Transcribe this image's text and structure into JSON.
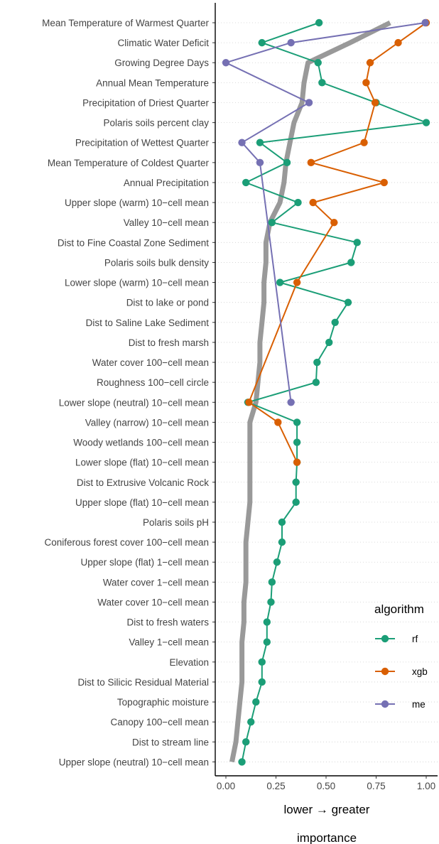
{
  "chart_data": {
    "type": "line",
    "orientation": "horizontal",
    "categories": [
      "Mean Temperature of Warmest Quarter",
      "Climatic Water Deficit",
      "Growing Degree Days",
      "Annual Mean Temperature",
      "Precipitation of Driest Quarter",
      "Polaris soils percent clay",
      "Precipitation of Wettest Quarter",
      "Mean Temperature of Coldest Quarter",
      "Annual Precipitation",
      "Upper slope (warm) 10−cell mean",
      "Valley 10−cell mean",
      "Dist to Fine Coastal Zone Sediment",
      "Polaris soils bulk density",
      "Lower slope (warm) 10−cell mean",
      "Dist to lake or pond",
      "Dist to Saline Lake Sediment",
      "Dist to fresh marsh",
      "Water cover 100−cell mean",
      "Roughness 100−cell circle",
      "Lower slope (neutral) 10−cell mean",
      "Valley (narrow) 10−cell mean",
      "Woody wetlands 100−cell mean",
      "Lower slope (flat) 10−cell mean",
      "Dist to Extrusive Volcanic Rock",
      "Upper slope (flat) 10−cell mean",
      "Polaris soils pH",
      "Coniferous forest cover 100−cell mean",
      "Upper slope (flat) 1−cell mean",
      "Water cover 1−cell mean",
      "Water cover 10−cell mean",
      "Dist to fresh waters",
      "Valley 1−cell mean",
      "Elevation",
      "Dist to Silicic Residual Material",
      "Topographic moisture",
      "Canopy 100−cell mean",
      "Dist to stream line",
      "Upper slope (neutral) 10−cell mean"
    ],
    "series": [
      {
        "name": "rf",
        "color": "#1b9e77",
        "values": [
          0.465,
          0.18,
          0.46,
          0.48,
          0.75,
          1.0,
          0.17,
          0.305,
          0.1,
          0.36,
          0.23,
          0.655,
          0.625,
          0.27,
          0.61,
          0.545,
          0.515,
          0.455,
          0.45,
          0.11,
          0.355,
          0.355,
          0.355,
          0.35,
          0.35,
          0.28,
          0.28,
          0.255,
          0.23,
          0.225,
          0.205,
          0.205,
          0.18,
          0.18,
          0.15,
          0.125,
          0.1,
          0.08
        ]
      },
      {
        "name": "xgb",
        "color": "#d95f02",
        "values": [
          1.0,
          0.86,
          0.72,
          0.7,
          0.745,
          null,
          0.69,
          0.425,
          0.79,
          0.435,
          0.54,
          null,
          null,
          0.355,
          null,
          null,
          null,
          null,
          null,
          0.115,
          0.26,
          null,
          0.355,
          null,
          null,
          null,
          null,
          null,
          null,
          null,
          null,
          null,
          null,
          null,
          null,
          null,
          null,
          null
        ]
      },
      {
        "name": "me",
        "color": "#7570b3",
        "values": [
          0.995,
          0.325,
          0.0,
          null,
          0.415,
          null,
          0.08,
          0.17,
          null,
          null,
          null,
          null,
          null,
          null,
          null,
          null,
          null,
          null,
          null,
          0.325,
          null,
          null,
          null,
          null,
          null,
          null,
          null,
          null,
          null,
          null,
          null,
          null,
          null,
          null,
          null,
          null,
          null,
          null
        ]
      }
    ],
    "mean_line": {
      "color": "#999999",
      "values": [
        0.82,
        0.62,
        0.41,
        0.39,
        0.38,
        0.34,
        0.32,
        0.3,
        0.29,
        0.27,
        0.22,
        0.2,
        0.2,
        0.19,
        0.19,
        0.18,
        0.17,
        0.17,
        0.16,
        0.15,
        0.12,
        0.12,
        0.12,
        0.12,
        0.12,
        0.11,
        0.1,
        0.1,
        0.1,
        0.09,
        0.09,
        0.08,
        0.08,
        0.08,
        0.07,
        0.06,
        0.05,
        0.03
      ]
    },
    "x_ticks": [
      "0.00",
      "0.25",
      "0.50",
      "0.75",
      "1.00"
    ],
    "xlim": [
      -0.05,
      1.05
    ],
    "xlabel": "lower → greater",
    "xlabel2": "importance",
    "legend": {
      "title": "algorithm",
      "position": "right",
      "items": [
        "rf",
        "xgb",
        "me"
      ]
    },
    "grid": "horizontal-dotted"
  }
}
